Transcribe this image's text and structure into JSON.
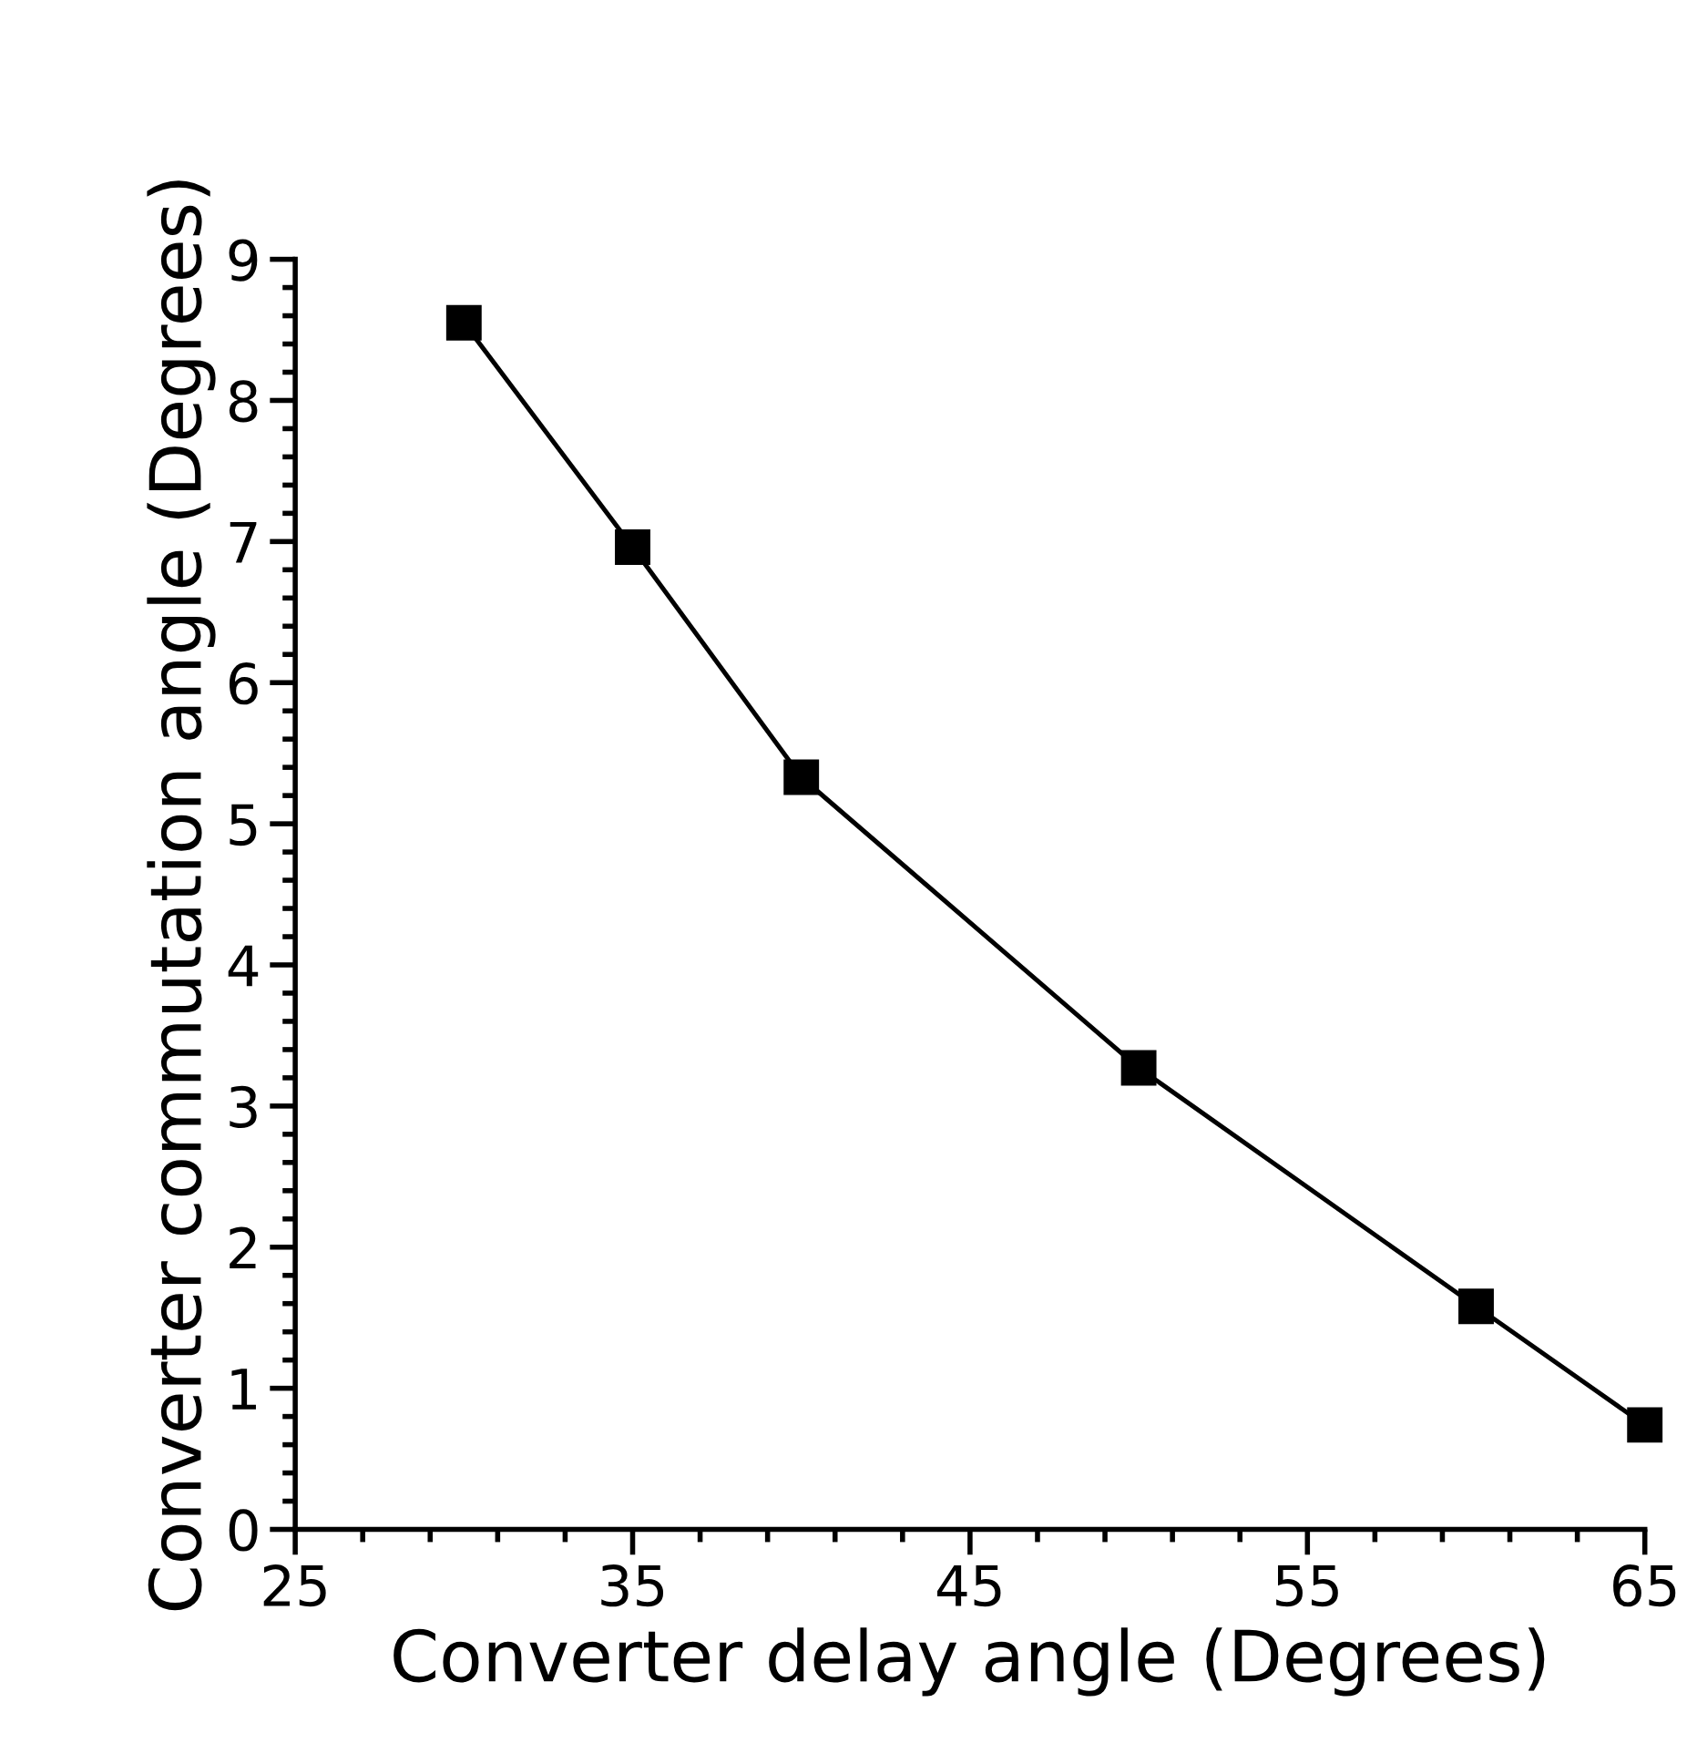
{
  "chart_data": {
    "type": "line",
    "xlabel": "Converter delay angle (Degrees)",
    "ylabel": "Converter commutation angle (Degrees)",
    "x": [
      30,
      35,
      40,
      50,
      60,
      65
    ],
    "series": [
      {
        "color": "#000000",
        "values": [
          8.55,
          6.96,
          5.33,
          3.27,
          1.58,
          0.74
        ]
      }
    ],
    "xlim": [
      25,
      65
    ],
    "xticks": [
      25,
      35,
      45,
      55,
      65
    ],
    "ylim": [
      0,
      9
    ],
    "yticks": [
      0,
      1,
      2,
      3,
      4,
      5,
      6,
      7,
      8,
      9
    ],
    "marker": "square",
    "line_style": "solid",
    "grid": false,
    "legend": false
  }
}
